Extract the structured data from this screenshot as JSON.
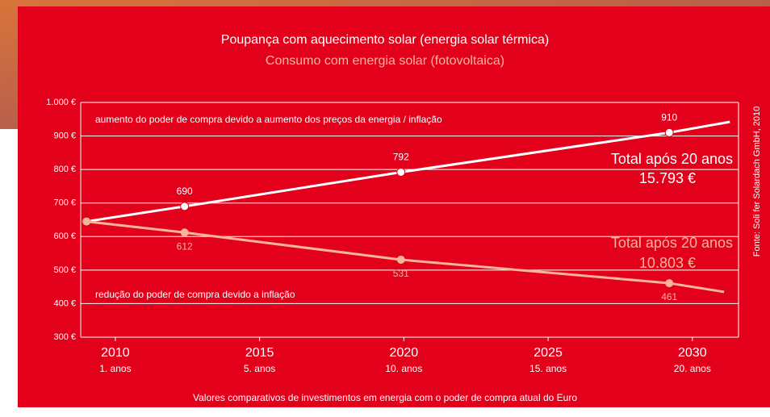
{
  "chart_data": {
    "type": "line",
    "series": [
      {
        "name": "Poupança com aquecimento solar (energia solar térmica)",
        "color": "#ffffff",
        "x": [
          2009,
          2012.4,
          2019.9,
          2029.2,
          2031.3
        ],
        "values": [
          645,
          690,
          792,
          910,
          942
        ]
      },
      {
        "name": "Consumo com energia solar (fotovoltaica)",
        "color": "#f7b49a",
        "x": [
          2009,
          2012.4,
          2019.9,
          2029.2,
          2031.1
        ],
        "values": [
          645,
          612,
          531,
          461,
          435
        ]
      }
    ],
    "xlim": [
      2008.8,
      2031.6
    ],
    "xticks": [
      2010,
      2015,
      2020,
      2025,
      2030
    ],
    "x_sublabels": [
      "1. anos",
      "5. anos",
      "10. anos",
      "15. anos",
      "20. anos"
    ],
    "ylim": [
      300,
      1000
    ],
    "yticks": [
      {
        "value": 300,
        "label": "300 €"
      },
      {
        "value": 400,
        "label": "400 €"
      },
      {
        "value": 500,
        "label": "500 €"
      },
      {
        "value": 600,
        "label": "600 €"
      },
      {
        "value": 700,
        "label": "700 €"
      },
      {
        "value": 800,
        "label": "800 €"
      },
      {
        "value": 900,
        "label": "900 €"
      },
      {
        "value": 1000,
        "label": "1.000 €"
      }
    ],
    "grid": true,
    "annotations": {
      "upper": "aumento do poder de compra devido a aumento dos preços da energia / inflação",
      "lower": "redução do poder de compra devido a inflação",
      "total_label_1": "Total após 20 anos",
      "total_value_1": "15.793 €",
      "total_label_2": "Total após 20 anos",
      "total_value_2": "10.803 €"
    },
    "footnote": "Valores comparativos de investimentos em energia com o poder de compra atual do Euro",
    "source": "Fonte: Soli fer Solardach GmbH, 2010"
  }
}
